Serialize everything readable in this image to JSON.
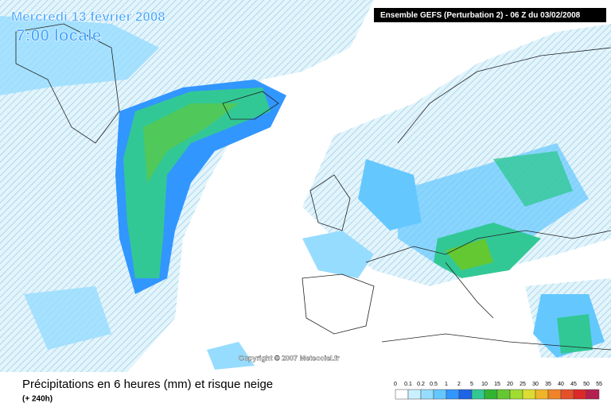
{
  "header": {
    "date": "Mercredi 13 février 2008",
    "time": "7:00 locale",
    "model": "Ensemble GEFS (Perturbation 2)  - 06 Z du 03/02/2008"
  },
  "copyright": "Copyright © 2007 Meteociel.fr",
  "caption": {
    "title": "Précipitations en 6 heures (mm) et risque neige",
    "subtitle": "(+ 240h)"
  },
  "legend": {
    "labels": [
      0,
      0.1,
      0.2,
      0.5,
      1,
      2,
      5,
      10,
      15,
      20,
      25,
      30,
      35,
      40,
      45,
      50,
      55
    ],
    "colors": [
      "#ffffff",
      "#c8f0ff",
      "#96dcff",
      "#64c8ff",
      "#3296ff",
      "#1e64e6",
      "#32c896",
      "#32b432",
      "#64c832",
      "#a0dc32",
      "#dcdc32",
      "#f0b428",
      "#f08228",
      "#e65028",
      "#dc2828",
      "#b41e50"
    ]
  }
}
